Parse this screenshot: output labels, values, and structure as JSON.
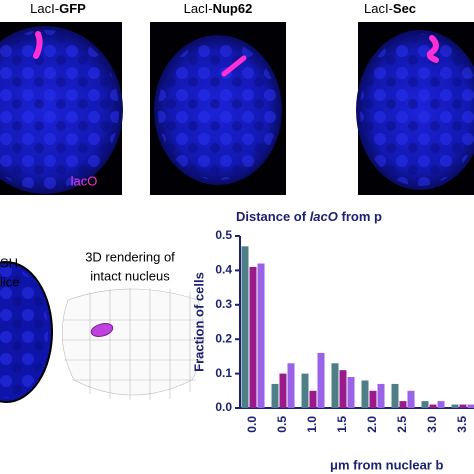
{
  "panels": [
    {
      "prefix": "LacI-",
      "name": "GFP"
    },
    {
      "prefix": "LacI-",
      "name": "Nup62"
    },
    {
      "prefix": "LacI-",
      "name": "Sec"
    }
  ],
  "channel_label": "lacO",
  "fish_label": [
    "SH",
    "lice"
  ],
  "rendering_label": [
    "3D rendering of",
    "intact nucleus"
  ],
  "chart_data": {
    "type": "bar",
    "title": [
      "Distance of ",
      "lacO",
      " from p"
    ],
    "ylabel": "Fraction of cells",
    "xlabel": "μm from nuclear b",
    "categories": [
      "0.0",
      "0.5",
      "1.0",
      "1.5",
      "2.0",
      "2.5",
      "3.0",
      "3.5"
    ],
    "series": [
      {
        "color": "#4e7f86",
        "values": [
          0.47,
          0.07,
          0.1,
          0.13,
          0.08,
          0.07,
          0.02,
          0.01
        ]
      },
      {
        "color": "#9a1a8c",
        "values": [
          0.41,
          0.1,
          0.05,
          0.11,
          0.05,
          0.02,
          0.01,
          0.01
        ]
      },
      {
        "color": "#9a62e6",
        "values": [
          0.42,
          0.13,
          0.16,
          0.09,
          0.07,
          0.05,
          0.02,
          0.01
        ]
      }
    ],
    "ylim": [
      0,
      0.5
    ],
    "yticks": [
      {
        "value": 0,
        "label": "0.0"
      },
      0.1,
      0.2,
      0.3,
      0.4,
      0.5
    ]
  }
}
